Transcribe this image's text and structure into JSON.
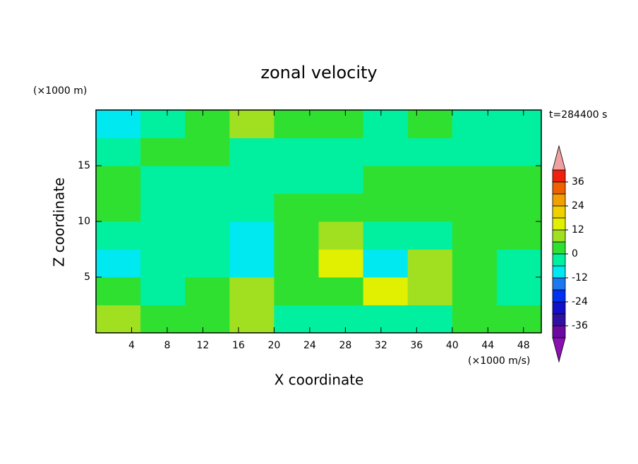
{
  "chart_data": {
    "type": "contour",
    "title": "zonal velocity",
    "x_label": "X coordinate",
    "y_label": "Z coordinate",
    "x_unit_label": "(×1000 m/s)",
    "y_unit_label": "(×1000 m)",
    "time_label": "t=284400 s",
    "xlim": [
      0,
      50
    ],
    "ylim": [
      0,
      20
    ],
    "xticks": [
      4,
      8,
      12,
      16,
      20,
      24,
      28,
      32,
      36,
      40,
      44,
      48
    ],
    "yticks": [
      5,
      10,
      15
    ],
    "x": [
      2.5,
      7.5,
      12.5,
      17.5,
      22.5,
      27.5,
      32.5,
      37.5,
      42.5,
      47.5
    ],
    "y": [
      1.25,
      3.75,
      6.25,
      8.75,
      11.25,
      13.75,
      16.25,
      18.75
    ],
    "z": [
      [
        6,
        3,
        3,
        9,
        -3,
        -3,
        -3,
        -3,
        0,
        3
      ],
      [
        0,
        -3,
        0,
        6,
        3,
        3,
        12,
        6,
        3,
        -3
      ],
      [
        -9,
        -3,
        -3,
        -9,
        3,
        12,
        -9,
        9,
        3,
        -3
      ],
      [
        -3,
        -6,
        -6,
        -9,
        3,
        6,
        -3,
        -3,
        3,
        0
      ],
      [
        3,
        -3,
        -3,
        -3,
        0,
        3,
        3,
        3,
        3,
        3
      ],
      [
        3,
        -3,
        -3,
        -3,
        -3,
        -3,
        3,
        3,
        3,
        0
      ],
      [
        -3,
        3,
        3,
        -3,
        -3,
        -3,
        -3,
        -3,
        -3,
        -3
      ],
      [
        -9,
        -3,
        3,
        6,
        3,
        3,
        -3,
        3,
        -3,
        -3
      ]
    ],
    "levels": [
      -42,
      -36,
      -30,
      -24,
      -18,
      -12,
      -6,
      0,
      6,
      12,
      18,
      24,
      30,
      36,
      42
    ],
    "colors": [
      "#6a0aa0",
      "#3010a0",
      "#1010c8",
      "#0030f0",
      "#1e78f0",
      "#00e8f0",
      "#00f0a0",
      "#30e030",
      "#a0e020",
      "#e0f000",
      "#f0d000",
      "#f0a000",
      "#f06000",
      "#f02010"
    ],
    "under_color": "#8a10b0",
    "over_color": "#f0a0a0",
    "colorbar_ticks": [
      -36,
      -24,
      -12,
      0,
      12,
      24,
      36
    ]
  }
}
